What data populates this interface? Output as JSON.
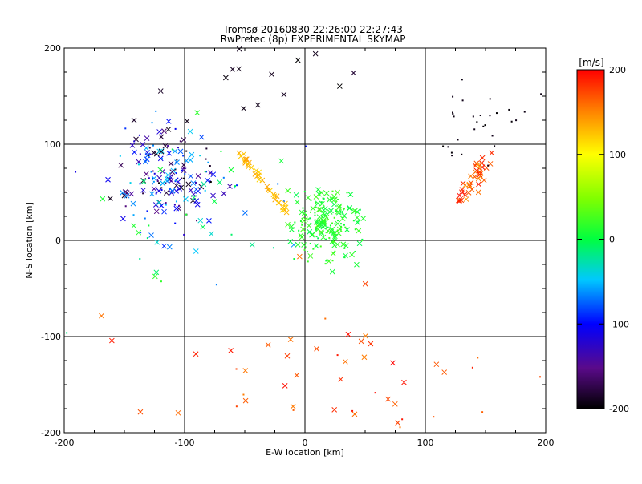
{
  "chart_data": {
    "type": "scatter",
    "title": "Tromsø 20160830 22:26:00-22:27:43",
    "subtitle": "RwPretec (8p) EXPERIMENTAL SKYMAP",
    "xlabel": "E-W location [km]",
    "ylabel": "N-S location [km]",
    "xlim": [
      -200,
      200
    ],
    "ylim": [
      -200,
      200
    ],
    "x_ticks": [
      -200,
      -100,
      0,
      100,
      200
    ],
    "y_ticks": [
      -200,
      -100,
      0,
      100,
      200
    ],
    "x_tick_labels": [
      "-200",
      "-100",
      "0",
      "100",
      "200"
    ],
    "y_tick_labels": [
      "-200",
      "-100",
      "0",
      "100",
      "200"
    ],
    "grid": "lines at 100 km intervals",
    "colorbar": {
      "label": "[m/s]",
      "range": [
        -200,
        200
      ],
      "ticks": [
        200,
        100,
        0,
        -100,
        -200
      ],
      "tick_labels": [
        "200",
        "100",
        "0",
        "-100",
        "-200"
      ],
      "colormap": "black-purple-blue-cyan-green-yellow-orange-red"
    },
    "markers": {
      "cross": "x",
      "dot": "."
    },
    "clusters": [
      {
        "region": "NW",
        "cx": -115,
        "cy": 70,
        "sx": 22,
        "sy": 25,
        "n": 170,
        "vmin": -200,
        "vmax": -40,
        "marker": "mixed"
      },
      {
        "region": "NW-outer",
        "cx": -95,
        "cy": 40,
        "sx": 40,
        "sy": 40,
        "n": 60,
        "vmin": -110,
        "vmax": 20,
        "marker": "mixed"
      },
      {
        "region": "diagonal-orange",
        "cx": -32,
        "cy": 62,
        "sx": 8,
        "sy": 18,
        "n": 35,
        "vmin": 115,
        "vmax": 140,
        "marker": "cross"
      },
      {
        "region": "center-green",
        "cx": 18,
        "cy": 15,
        "sx": 14,
        "sy": 18,
        "n": 190,
        "vmin": -5,
        "vmax": 30,
        "marker": "mixed"
      },
      {
        "region": "NE-red",
        "cx": 140,
        "cy": 65,
        "sx": 8,
        "sy": 18,
        "n": 40,
        "vmin": 140,
        "vmax": 200,
        "marker": "cross"
      },
      {
        "region": "NE-top",
        "cx": 150,
        "cy": 120,
        "sx": 25,
        "sy": 25,
        "n": 30,
        "vmin": -200,
        "vmax": -190,
        "marker": "dot"
      },
      {
        "region": "scatter-south",
        "cx": 10,
        "cy": -150,
        "sx": 70,
        "sy": 35,
        "n": 55,
        "vmin": 150,
        "vmax": 200,
        "marker": "mixed"
      },
      {
        "region": "scatter-north",
        "cx": -40,
        "cy": 165,
        "sx": 40,
        "sy": 25,
        "n": 14,
        "vmin": -200,
        "vmax": -180,
        "marker": "cross"
      }
    ]
  }
}
